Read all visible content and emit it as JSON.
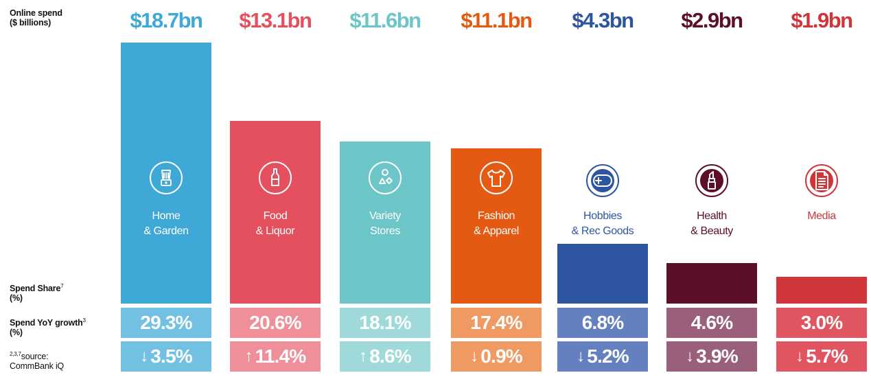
{
  "labels": {
    "online_spend_line1": "Online spend",
    "online_spend_line2": "($ billions)",
    "spend_share_line1": "Spend Share",
    "spend_share_sup": "7",
    "spend_share_line2": "(%)",
    "yoy_line1": "Spend YoY growth",
    "yoy_sup": "3",
    "yoy_line2": "(%)",
    "source_sup": "2,3,7",
    "source_line1": "source:",
    "source_line2": "CommBank iQ"
  },
  "chart_data": {
    "type": "bar",
    "title": "Online spend ($ billions)",
    "unit": "$ billions",
    "ylim": [
      0,
      18.7
    ],
    "categories": [
      {
        "line1": "Home",
        "line2": "& Garden",
        "icon": "blender-icon",
        "color": "#3ea9d6",
        "light": "#72c1e2",
        "label_color": "#ffffff"
      },
      {
        "line1": "Food",
        "line2": "& Liquor",
        "icon": "bottle-icon",
        "color": "#e5505f",
        "light": "#ef8f99",
        "label_color": "#ffffff"
      },
      {
        "line1": "Variety",
        "line2": "Stores",
        "icon": "shapes-icon",
        "color": "#6cc5c6",
        "light": "#9fd9da",
        "label_color": "#ffffff"
      },
      {
        "line1": "Fashion",
        "line2": "& Apparel",
        "icon": "tshirt-icon",
        "color": "#e45a12",
        "light": "#f09a63",
        "label_color": "#ffffff"
      },
      {
        "line1": "Hobbies",
        "line2": "& Rec Goods",
        "icon": "gamepad-icon",
        "color": "#2d55a0",
        "light": "#6480be",
        "label_color": "#2d55a0"
      },
      {
        "line1": "Health",
        "line2": "& Beauty",
        "icon": "lipstick-icon",
        "color": "#5c0e2b",
        "light": "#9a5f7a",
        "label_color": "#5c0e2b"
      },
      {
        "line1": "Media",
        "line2": "",
        "icon": "document-icon",
        "color": "#cf3539",
        "light": "#e15561",
        "label_color": "#cf3539"
      }
    ],
    "spend_labels": [
      "$18.7bn",
      "$13.1bn",
      "$11.6bn",
      "$11.1bn",
      "$4.3bn",
      "$2.9bn",
      "$1.9bn"
    ],
    "values": [
      18.7,
      13.1,
      11.6,
      11.1,
      4.3,
      2.9,
      1.9
    ],
    "spend_share": [
      "29.3%",
      "20.6%",
      "18.1%",
      "17.4%",
      "6.8%",
      "4.6%",
      "3.0%"
    ],
    "yoy_growth": [
      {
        "dir": "down",
        "arrow": "↓",
        "value": "3.5%"
      },
      {
        "dir": "up",
        "arrow": "↑",
        "value": "11.4%"
      },
      {
        "dir": "up",
        "arrow": "↑",
        "value": "8.6%"
      },
      {
        "dir": "down",
        "arrow": "↓",
        "value": "0.9%"
      },
      {
        "dir": "down",
        "arrow": "↓",
        "value": "5.2%"
      },
      {
        "dir": "down",
        "arrow": "↓",
        "value": "3.9%"
      },
      {
        "dir": "down",
        "arrow": "↓",
        "value": "5.7%"
      }
    ]
  }
}
